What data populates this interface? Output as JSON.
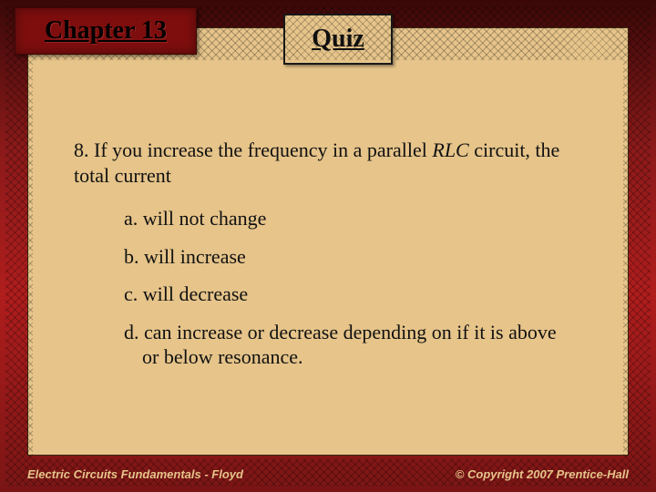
{
  "colors": {
    "content_bg": "#e6c48a",
    "frame_gradient_top": "#3a0808",
    "frame_gradient_mid": "#b01d1d",
    "chapter_box_bg": "#7e0e0e",
    "text_color": "#111111",
    "footer_color": "#e6c48a"
  },
  "header": {
    "chapter_label": "Chapter 13",
    "quiz_label": "Quiz"
  },
  "question": {
    "number": "8.",
    "stem_pre": "If you increase the frequency in a parallel ",
    "stem_italic": "RLC",
    "stem_post": " circuit, the total current",
    "options": [
      {
        "letter": "a.",
        "text": "will not change"
      },
      {
        "letter": "b.",
        "text": "will increase"
      },
      {
        "letter": "c.",
        "text": "will decrease"
      },
      {
        "letter": "d.",
        "text": "can increase or decrease depending on if it is above or below resonance."
      }
    ]
  },
  "footer": {
    "left": "Electric Circuits Fundamentals - Floyd",
    "right": "© Copyright 2007 Prentice-Hall"
  },
  "typography": {
    "chapter_fontsize": 28,
    "quiz_fontsize": 28,
    "body_fontsize": 22,
    "footer_fontsize": 13,
    "body_font": "Times New Roman",
    "footer_font": "Arial"
  }
}
